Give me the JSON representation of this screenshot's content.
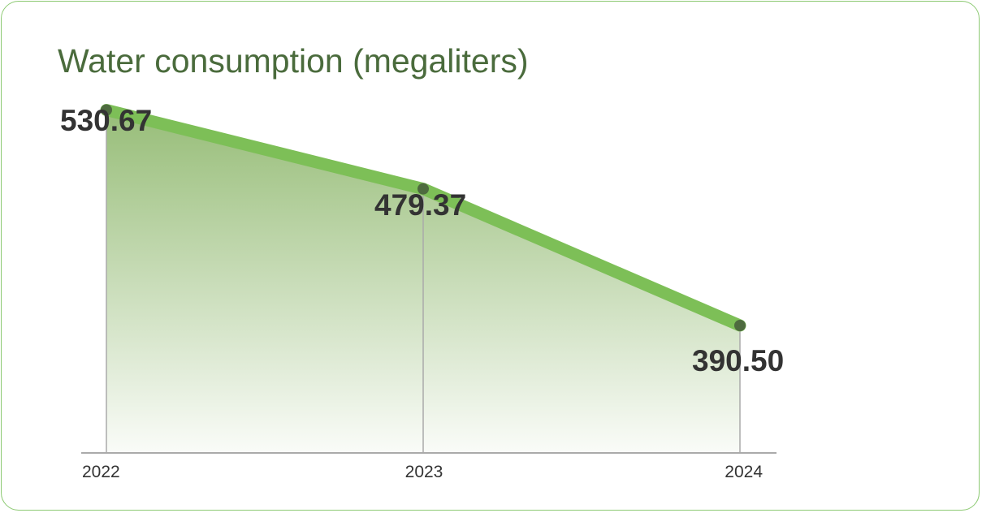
{
  "chart_data": {
    "type": "area",
    "title": "Water consumption (megaliters)",
    "categories": [
      "2022",
      "2023",
      "2024"
    ],
    "series": [
      {
        "values": [
          530.67,
          479.37,
          390.5
        ],
        "data_labels": [
          "530.67",
          "479.37",
          "390.50"
        ]
      }
    ],
    "ylim": [
      230,
      570
    ],
    "grid": false,
    "legend": "none"
  },
  "colors": {
    "line": "#7dbf57",
    "marker": "#4e6b3f",
    "fill_top": "#97bd78",
    "axis": "#aaaaaa",
    "title": "#4a6b3c",
    "card_border": "#8cc972"
  }
}
